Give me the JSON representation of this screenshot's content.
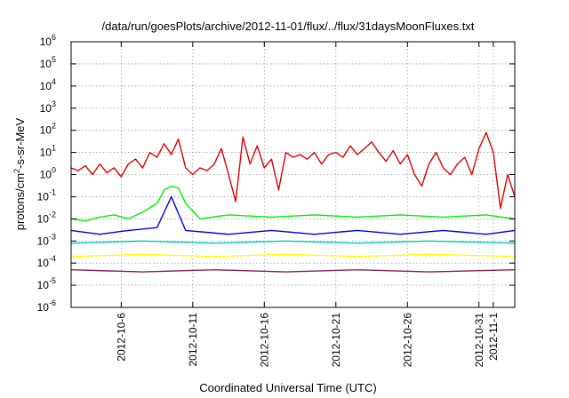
{
  "chart_data": {
    "type": "line",
    "title": "/data/run/goesPlots/archive/2012-11-01/flux/../flux/31daysMoonFluxes.txt",
    "xlabel": "Coordinated Universal Time (UTC)",
    "ylabel": {
      "base": "protons/cm",
      "sup1": "2",
      "mid": "-s-sr-MeV"
    },
    "x_start": "2012-10-02T12:00",
    "x_end": "2012-11-02T12:00",
    "x_ticks": [
      {
        "date": "2012-10-06",
        "label": "2012-10-6"
      },
      {
        "date": "2012-10-11",
        "label": "2012-10-11"
      },
      {
        "date": "2012-10-16",
        "label": "2012-10-16"
      },
      {
        "date": "2012-10-21",
        "label": "2012-10-21"
      },
      {
        "date": "2012-10-26",
        "label": "2012-10-26"
      },
      {
        "date": "2012-10-31",
        "label": "2012-10-31"
      },
      {
        "date": "2012-11-01",
        "label": "2012-11-1"
      }
    ],
    "y_scale": "log",
    "ylim": [
      1e-06,
      1000000.0
    ],
    "y_ticks": [
      {
        "exp": -6,
        "base": "10",
        "sup": "-6"
      },
      {
        "exp": -5,
        "base": "10",
        "sup": "-5"
      },
      {
        "exp": -4,
        "base": "10",
        "sup": "-4"
      },
      {
        "exp": -3,
        "base": "10",
        "sup": "-3"
      },
      {
        "exp": -2,
        "base": "10",
        "sup": "-2"
      },
      {
        "exp": -1,
        "base": "10",
        "sup": "-1"
      },
      {
        "exp": 0,
        "base": "10",
        "sup": "0"
      },
      {
        "exp": 1,
        "base": "10",
        "sup": "1"
      },
      {
        "exp": 2,
        "base": "10",
        "sup": "2"
      },
      {
        "exp": 3,
        "base": "10",
        "sup": "3"
      },
      {
        "exp": 4,
        "base": "10",
        "sup": "4"
      },
      {
        "exp": 5,
        "base": "10",
        "sup": "5"
      },
      {
        "exp": 6,
        "base": "10",
        "sup": "6"
      }
    ],
    "grid": true,
    "series": [
      {
        "color": "#e00000",
        "points": [
          [
            "2012-10-02T12:00",
            2.0
          ],
          [
            "2012-10-03T00:00",
            1.5
          ],
          [
            "2012-10-03T12:00",
            2.5
          ],
          [
            "2012-10-04T00:00",
            1.0
          ],
          [
            "2012-10-04T12:00",
            3.0
          ],
          [
            "2012-10-05T00:00",
            1.2
          ],
          [
            "2012-10-05T12:00",
            2.0
          ],
          [
            "2012-10-06T00:00",
            0.8
          ],
          [
            "2012-10-06T12:00",
            3.0
          ],
          [
            "2012-10-07T00:00",
            5.0
          ],
          [
            "2012-10-07T12:00",
            2.0
          ],
          [
            "2012-10-08T00:00",
            10
          ],
          [
            "2012-10-08T12:00",
            6.0
          ],
          [
            "2012-10-09T00:00",
            25
          ],
          [
            "2012-10-09T12:00",
            8.0
          ],
          [
            "2012-10-10T00:00",
            40
          ],
          [
            "2012-10-10T12:00",
            2.0
          ],
          [
            "2012-10-11T00:00",
            1.0
          ],
          [
            "2012-10-11T12:00",
            2.0
          ],
          [
            "2012-10-12T00:00",
            1.5
          ],
          [
            "2012-10-12T12:00",
            3.0
          ],
          [
            "2012-10-13T00:00",
            15
          ],
          [
            "2012-10-13T12:00",
            1.0
          ],
          [
            "2012-10-14T00:00",
            0.06
          ],
          [
            "2012-10-14T12:00",
            50
          ],
          [
            "2012-10-15T00:00",
            3.0
          ],
          [
            "2012-10-15T12:00",
            20
          ],
          [
            "2012-10-16T00:00",
            2.0
          ],
          [
            "2012-10-16T12:00",
            5.0
          ],
          [
            "2012-10-17T00:00",
            0.2
          ],
          [
            "2012-10-17T12:00",
            10
          ],
          [
            "2012-10-18T00:00",
            6.0
          ],
          [
            "2012-10-18T12:00",
            8.0
          ],
          [
            "2012-10-19T00:00",
            5.0
          ],
          [
            "2012-10-19T12:00",
            10
          ],
          [
            "2012-10-20T00:00",
            3.0
          ],
          [
            "2012-10-20T12:00",
            8.0
          ],
          [
            "2012-10-21T00:00",
            10
          ],
          [
            "2012-10-21T12:00",
            6.0
          ],
          [
            "2012-10-22T00:00",
            20
          ],
          [
            "2012-10-22T12:00",
            8.0
          ],
          [
            "2012-10-23T00:00",
            15
          ],
          [
            "2012-10-23T12:00",
            30
          ],
          [
            "2012-10-24T00:00",
            10
          ],
          [
            "2012-10-24T12:00",
            4.0
          ],
          [
            "2012-10-25T00:00",
            12
          ],
          [
            "2012-10-25T12:00",
            3.0
          ],
          [
            "2012-10-26T00:00",
            8.0
          ],
          [
            "2012-10-26T12:00",
            1.0
          ],
          [
            "2012-10-27T00:00",
            0.3
          ],
          [
            "2012-10-27T12:00",
            3.0
          ],
          [
            "2012-10-28T00:00",
            10
          ],
          [
            "2012-10-28T12:00",
            2.0
          ],
          [
            "2012-10-29T00:00",
            1.0
          ],
          [
            "2012-10-29T12:00",
            3.0
          ],
          [
            "2012-10-30T00:00",
            6.0
          ],
          [
            "2012-10-30T12:00",
            1.0
          ],
          [
            "2012-10-31T00:00",
            15
          ],
          [
            "2012-10-31T12:00",
            80
          ],
          [
            "2012-11-01T00:00",
            10
          ],
          [
            "2012-11-01T12:00",
            0.03
          ],
          [
            "2012-11-02T00:00",
            1.0
          ],
          [
            "2012-11-02T12:00",
            0.1
          ]
        ]
      },
      {
        "color": "#00ee00",
        "points": [
          [
            "2012-10-02T12:00",
            0.01
          ],
          [
            "2012-10-03T12:00",
            0.008
          ],
          [
            "2012-10-04T12:00",
            0.012
          ],
          [
            "2012-10-05T12:00",
            0.015
          ],
          [
            "2012-10-06T12:00",
            0.01
          ],
          [
            "2012-10-07T12:00",
            0.02
          ],
          [
            "2012-10-08T12:00",
            0.05
          ],
          [
            "2012-10-09T00:00",
            0.2
          ],
          [
            "2012-10-09T12:00",
            0.3
          ],
          [
            "2012-10-10T00:00",
            0.25
          ],
          [
            "2012-10-10T12:00",
            0.05
          ],
          [
            "2012-10-11T12:00",
            0.01
          ],
          [
            "2012-10-13T12:00",
            0.015
          ],
          [
            "2012-10-16T12:00",
            0.012
          ],
          [
            "2012-10-19T12:00",
            0.015
          ],
          [
            "2012-10-22T12:00",
            0.012
          ],
          [
            "2012-10-25T12:00",
            0.015
          ],
          [
            "2012-10-28T12:00",
            0.012
          ],
          [
            "2012-10-31T12:00",
            0.015
          ],
          [
            "2012-11-02T12:00",
            0.01
          ]
        ]
      },
      {
        "color": "#0000ee",
        "points": [
          [
            "2012-10-02T12:00",
            0.003
          ],
          [
            "2012-10-04T12:00",
            0.002
          ],
          [
            "2012-10-06T12:00",
            0.003
          ],
          [
            "2012-10-08T12:00",
            0.004
          ],
          [
            "2012-10-09T12:00",
            0.1
          ],
          [
            "2012-10-10T12:00",
            0.003
          ],
          [
            "2012-10-13T12:00",
            0.002
          ],
          [
            "2012-10-16T12:00",
            0.003
          ],
          [
            "2012-10-19T12:00",
            0.002
          ],
          [
            "2012-10-22T12:00",
            0.003
          ],
          [
            "2012-10-25T12:00",
            0.002
          ],
          [
            "2012-10-28T12:00",
            0.003
          ],
          [
            "2012-10-31T12:00",
            0.002
          ],
          [
            "2012-11-02T12:00",
            0.003
          ]
        ]
      },
      {
        "color": "#00c8b4",
        "points": [
          [
            "2012-10-02T12:00",
            0.0008
          ],
          [
            "2012-10-07T12:00",
            0.001
          ],
          [
            "2012-10-12T12:00",
            0.0008
          ],
          [
            "2012-10-17T12:00",
            0.001
          ],
          [
            "2012-10-22T12:00",
            0.0008
          ],
          [
            "2012-10-27T12:00",
            0.001
          ],
          [
            "2012-11-02T12:00",
            0.0008
          ]
        ]
      },
      {
        "color": "#ffff00",
        "points": [
          [
            "2012-10-02T12:00",
            0.0002
          ],
          [
            "2012-10-07T12:00",
            0.00025
          ],
          [
            "2012-10-12T12:00",
            0.0002
          ],
          [
            "2012-10-17T12:00",
            0.00025
          ],
          [
            "2012-10-22T12:00",
            0.0002
          ],
          [
            "2012-10-27T12:00",
            0.00025
          ],
          [
            "2012-11-02T12:00",
            0.0002
          ]
        ]
      },
      {
        "color": "#8b2252",
        "points": [
          [
            "2012-10-02T12:00",
            5e-05
          ],
          [
            "2012-10-07T12:00",
            4e-05
          ],
          [
            "2012-10-12T12:00",
            5e-05
          ],
          [
            "2012-10-17T12:00",
            4e-05
          ],
          [
            "2012-10-22T12:00",
            5e-05
          ],
          [
            "2012-10-27T12:00",
            4e-05
          ],
          [
            "2012-11-02T12:00",
            5e-05
          ]
        ]
      }
    ]
  }
}
